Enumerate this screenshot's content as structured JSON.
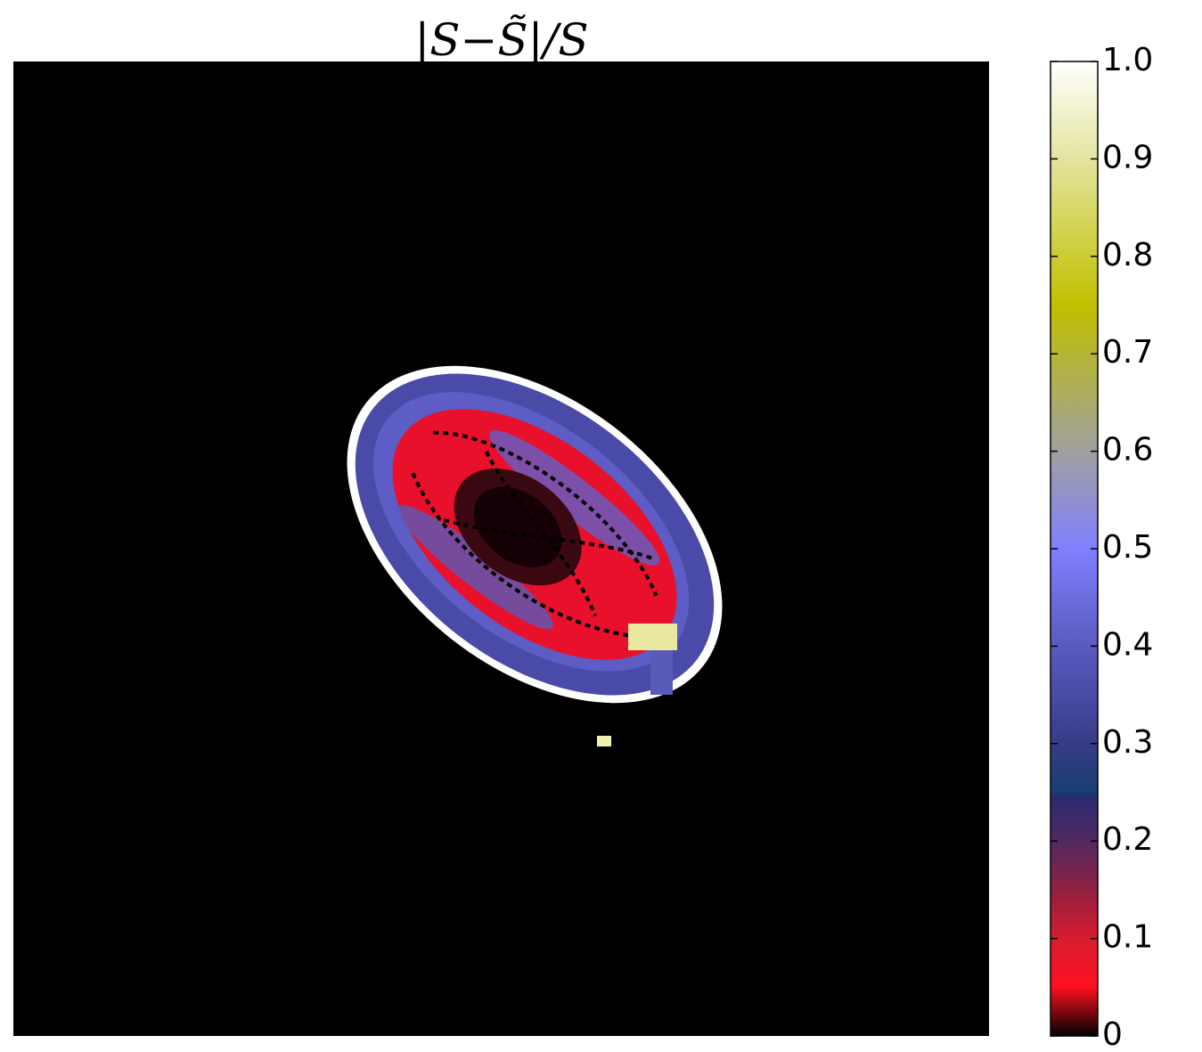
{
  "chart_data": {
    "type": "heatmap",
    "title": "|S−S̃|/S",
    "clim": [
      0,
      1
    ],
    "cticks": [
      0,
      {
        "value": 0.1,
        "label": "0.1"
      },
      {
        "value": 0.2,
        "label": "0.2"
      },
      {
        "value": 0.3,
        "label": "0.3"
      },
      {
        "value": 0.4,
        "label": "0.4"
      },
      {
        "value": 0.5,
        "label": "0.5"
      },
      {
        "value": 0.6,
        "label": "0.6"
      },
      {
        "value": 0.7,
        "label": "0.7"
      },
      {
        "value": 0.8,
        "label": "0.8"
      },
      {
        "value": 0.9,
        "label": "0.9"
      },
      {
        "value": 1,
        "label": "1.0"
      }
    ],
    "colormap": [
      {
        "value": 0,
        "color": "#000000"
      },
      {
        "value": 0.05,
        "color": "#ff1020"
      },
      {
        "value": 0.1,
        "color": "#d81c30"
      },
      {
        "value": 0.15,
        "color": "#902040"
      },
      {
        "value": 0.2,
        "color": "#502a60"
      },
      {
        "value": 0.245,
        "color": "#2a2a70"
      },
      {
        "value": 0.25,
        "color": "#183e72"
      },
      {
        "value": 0.3,
        "color": "#383c88"
      },
      {
        "value": 0.4,
        "color": "#5a5ac0"
      },
      {
        "value": 0.5,
        "color": "#8080ff"
      },
      {
        "value": 0.6,
        "color": "#a0a0a0"
      },
      {
        "value": 0.75,
        "color": "#c0c000"
      },
      {
        "value": 0.9,
        "color": "#e4e4a0"
      },
      {
        "value": 1,
        "color": "#ffffff"
      }
    ]
  }
}
